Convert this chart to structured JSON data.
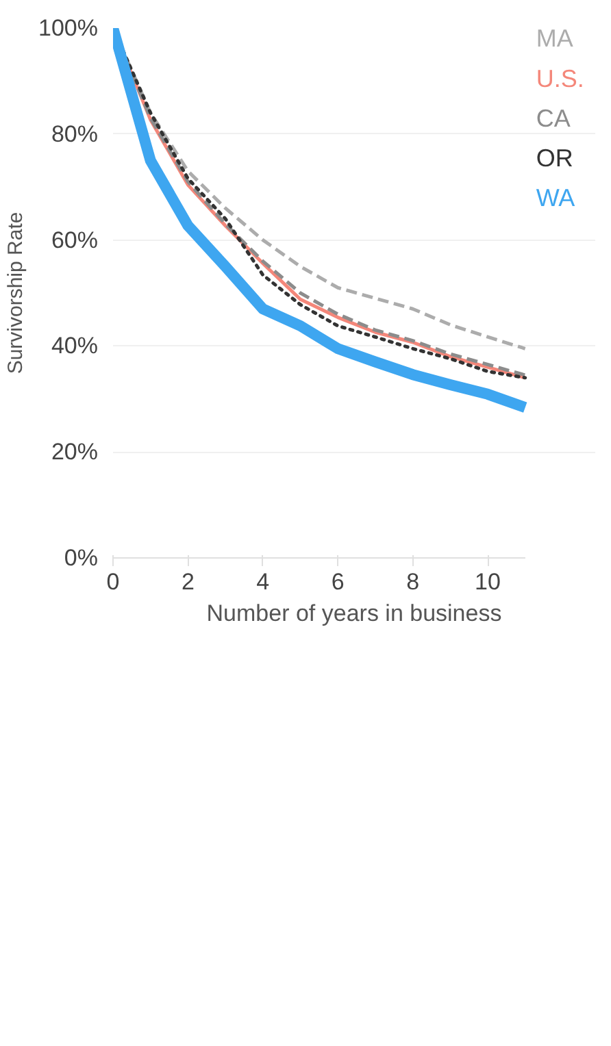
{
  "chart_data": {
    "type": "line",
    "xlabel": "Number of years in business",
    "ylabel": "Survivorship Rate",
    "x": [
      0,
      1,
      2,
      3,
      4,
      5,
      6,
      7,
      8,
      9,
      10,
      11
    ],
    "xlim": [
      0,
      11
    ],
    "xticks": [
      0,
      2,
      4,
      6,
      8,
      10
    ],
    "ylim": [
      0,
      100
    ],
    "yticks": [
      {
        "value": 0,
        "label": "0%"
      },
      {
        "value": 20,
        "label": "20%"
      },
      {
        "value": 40,
        "label": "40%"
      },
      {
        "value": 60,
        "label": "60%"
      },
      {
        "value": 80,
        "label": "80%"
      },
      {
        "value": 100,
        "label": "100%"
      }
    ],
    "grid": "y",
    "series": [
      {
        "name": "MA",
        "color": "#acacac",
        "line_style": "dashed",
        "values": [
          100,
          84,
          73,
          66,
          60,
          55,
          51,
          49,
          47,
          44,
          41.7,
          39.5
        ]
      },
      {
        "name": "U.S.",
        "color": "#f4877a",
        "line_style": "solid",
        "values": [
          100,
          82.7,
          70.4,
          62.7,
          55.6,
          48.8,
          45.4,
          42.6,
          40.7,
          38,
          36,
          34
        ]
      },
      {
        "name": "CA",
        "color": "#8c8c8c",
        "line_style": "dashed",
        "values": [
          100,
          83,
          71,
          63,
          56,
          50,
          46,
          43,
          41,
          38.5,
          36.5,
          34.5
        ]
      },
      {
        "name": "OR",
        "color": "#333333",
        "line_style": "dotted",
        "values": [
          100,
          84,
          71.6,
          64,
          53.4,
          47.8,
          43.8,
          41.7,
          39.5,
          37.6,
          35.2,
          34
        ]
      },
      {
        "name": "WA",
        "color": "#3ea6f0",
        "line_style": "solid",
        "values": [
          100,
          75,
          62.7,
          55,
          47,
          43.8,
          39.5,
          37,
          34.6,
          32.7,
          30.9,
          28.4
        ]
      }
    ]
  }
}
